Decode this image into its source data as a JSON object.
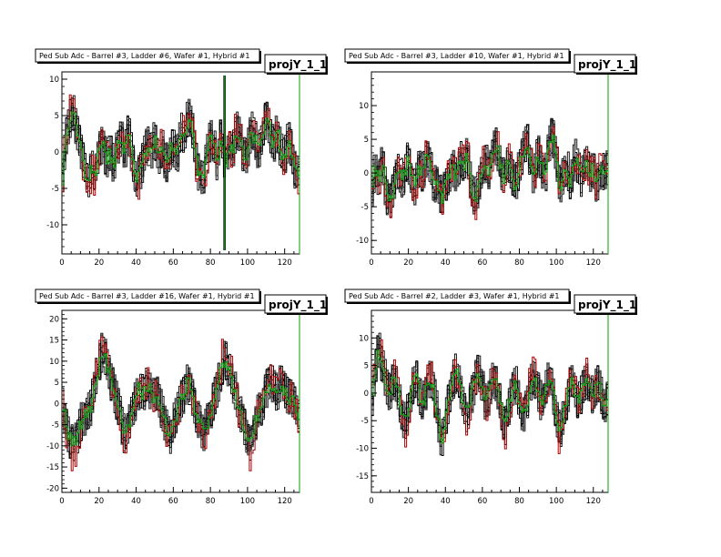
{
  "chart_data": [
    {
      "type": "line",
      "title": "Ped Sub Adc - Barrel #3, Ladder #6, Wafer #1, Hybrid #1",
      "stat_label": "projY_1_1",
      "xlim": [
        0,
        128
      ],
      "ylim": [
        -14,
        11
      ],
      "x_ticks": [
        0,
        20,
        40,
        60,
        80,
        100,
        120
      ],
      "y_ticks": [
        -10,
        -5,
        0,
        5,
        10
      ],
      "profile": [
        [
          0,
          -6
        ],
        [
          2,
          2
        ],
        [
          4,
          4
        ],
        [
          6,
          6
        ],
        [
          8,
          3
        ],
        [
          10,
          1
        ],
        [
          12,
          -2
        ],
        [
          14,
          -5
        ],
        [
          16,
          -2
        ],
        [
          18,
          -3
        ],
        [
          20,
          0
        ],
        [
          22,
          1
        ],
        [
          24,
          -1
        ],
        [
          26,
          0
        ],
        [
          28,
          -2
        ],
        [
          30,
          1
        ],
        [
          32,
          2
        ],
        [
          34,
          0
        ],
        [
          36,
          3
        ],
        [
          38,
          -1
        ],
        [
          40,
          -4
        ],
        [
          42,
          -3
        ],
        [
          44,
          -1
        ],
        [
          46,
          1
        ],
        [
          48,
          0
        ],
        [
          50,
          2
        ],
        [
          52,
          -1
        ],
        [
          54,
          1
        ],
        [
          56,
          -2
        ],
        [
          58,
          0
        ],
        [
          60,
          1
        ],
        [
          62,
          -1
        ],
        [
          64,
          3
        ],
        [
          66,
          2
        ],
        [
          68,
          5
        ],
        [
          70,
          4
        ],
        [
          72,
          -1
        ],
        [
          74,
          -3
        ],
        [
          76,
          -4
        ],
        [
          78,
          -1
        ],
        [
          80,
          2
        ],
        [
          82,
          1
        ],
        [
          84,
          -2
        ],
        [
          86,
          3
        ],
        [
          88,
          -2
        ],
        [
          90,
          1
        ],
        [
          92,
          0
        ],
        [
          94,
          3
        ],
        [
          96,
          2
        ],
        [
          98,
          -1
        ],
        [
          100,
          0
        ],
        [
          102,
          3
        ],
        [
          104,
          2
        ],
        [
          106,
          0
        ],
        [
          108,
          2
        ],
        [
          110,
          5
        ],
        [
          112,
          3
        ],
        [
          114,
          1
        ],
        [
          116,
          3
        ],
        [
          118,
          0
        ],
        [
          120,
          -1
        ],
        [
          122,
          2
        ],
        [
          124,
          0
        ],
        [
          126,
          -3
        ],
        [
          128,
          -3
        ]
      ],
      "spike": {
        "x": 87,
        "ymin": -13.5,
        "ymax": 10.5
      },
      "seed": 11
    },
    {
      "type": "line",
      "title": "Ped Sub Adc - Barrel #3, Ladder #10, Wafer #1, Hybrid #1",
      "stat_label": "projY_1_1",
      "xlim": [
        0,
        128
      ],
      "ylim": [
        -12,
        15
      ],
      "x_ticks": [
        0,
        20,
        40,
        60,
        80,
        100,
        120
      ],
      "y_ticks": [
        -10,
        -5,
        0,
        5,
        10
      ],
      "profile": [
        [
          0,
          -3
        ],
        [
          2,
          1
        ],
        [
          4,
          -1
        ],
        [
          6,
          2
        ],
        [
          8,
          -3
        ],
        [
          10,
          -5
        ],
        [
          12,
          -2
        ],
        [
          14,
          1
        ],
        [
          16,
          -1
        ],
        [
          18,
          0
        ],
        [
          20,
          2
        ],
        [
          22,
          -1
        ],
        [
          24,
          -2
        ],
        [
          26,
          1
        ],
        [
          28,
          0
        ],
        [
          30,
          3
        ],
        [
          32,
          1
        ],
        [
          34,
          -2
        ],
        [
          36,
          -1
        ],
        [
          38,
          -4
        ],
        [
          40,
          -2
        ],
        [
          42,
          0
        ],
        [
          44,
          1
        ],
        [
          46,
          -1
        ],
        [
          48,
          2
        ],
        [
          50,
          1
        ],
        [
          52,
          3
        ],
        [
          54,
          -2
        ],
        [
          56,
          -4
        ],
        [
          58,
          -2
        ],
        [
          60,
          1
        ],
        [
          62,
          2
        ],
        [
          64,
          0
        ],
        [
          66,
          3
        ],
        [
          68,
          4
        ],
        [
          70,
          1
        ],
        [
          72,
          -1
        ],
        [
          74,
          2
        ],
        [
          76,
          0
        ],
        [
          78,
          -2
        ],
        [
          80,
          1
        ],
        [
          82,
          3
        ],
        [
          84,
          5
        ],
        [
          86,
          2
        ],
        [
          88,
          -1
        ],
        [
          90,
          3
        ],
        [
          92,
          1
        ],
        [
          94,
          -1
        ],
        [
          96,
          4
        ],
        [
          98,
          6
        ],
        [
          100,
          2
        ],
        [
          102,
          -2
        ],
        [
          104,
          0
        ],
        [
          106,
          1
        ],
        [
          108,
          -2
        ],
        [
          110,
          3
        ],
        [
          112,
          1
        ],
        [
          114,
          -1
        ],
        [
          116,
          2
        ],
        [
          118,
          0
        ],
        [
          120,
          1
        ],
        [
          122,
          -2
        ],
        [
          124,
          1
        ],
        [
          126,
          0
        ],
        [
          128,
          1
        ]
      ],
      "spike": null,
      "seed": 23
    },
    {
      "type": "line",
      "title": "Ped Sub Adc - Barrel #3, Ladder #16, Wafer #1, Hybrid #1",
      "stat_label": "projY_1_1",
      "xlim": [
        0,
        128
      ],
      "ylim": [
        -21,
        22
      ],
      "x_ticks": [
        0,
        20,
        40,
        60,
        80,
        100,
        120
      ],
      "y_ticks": [
        -20,
        -15,
        -10,
        -5,
        0,
        5,
        10,
        15,
        20
      ],
      "profile": [
        [
          0,
          0
        ],
        [
          2,
          -4
        ],
        [
          4,
          -8
        ],
        [
          6,
          -10
        ],
        [
          8,
          -8
        ],
        [
          10,
          -5
        ],
        [
          12,
          -3
        ],
        [
          14,
          -2
        ],
        [
          16,
          0
        ],
        [
          18,
          5
        ],
        [
          20,
          9
        ],
        [
          22,
          13
        ],
        [
          24,
          10
        ],
        [
          26,
          6
        ],
        [
          28,
          3
        ],
        [
          30,
          0
        ],
        [
          32,
          -4
        ],
        [
          34,
          -8
        ],
        [
          36,
          -5
        ],
        [
          38,
          -2
        ],
        [
          40,
          1
        ],
        [
          42,
          4
        ],
        [
          44,
          2
        ],
        [
          46,
          5
        ],
        [
          48,
          3
        ],
        [
          50,
          1
        ],
        [
          52,
          2
        ],
        [
          54,
          -2
        ],
        [
          56,
          -5
        ],
        [
          58,
          -8
        ],
        [
          60,
          -5
        ],
        [
          62,
          -2
        ],
        [
          64,
          0
        ],
        [
          66,
          3
        ],
        [
          68,
          5
        ],
        [
          70,
          2
        ],
        [
          72,
          -2
        ],
        [
          74,
          -4
        ],
        [
          76,
          -7
        ],
        [
          78,
          -5
        ],
        [
          80,
          -2
        ],
        [
          82,
          1
        ],
        [
          84,
          4
        ],
        [
          86,
          8
        ],
        [
          88,
          11
        ],
        [
          90,
          8
        ],
        [
          92,
          5
        ],
        [
          94,
          2
        ],
        [
          96,
          -2
        ],
        [
          98,
          -5
        ],
        [
          100,
          -8
        ],
        [
          102,
          -10
        ],
        [
          104,
          -5
        ],
        [
          106,
          -2
        ],
        [
          108,
          0
        ],
        [
          110,
          3
        ],
        [
          112,
          5
        ],
        [
          114,
          4
        ],
        [
          116,
          2
        ],
        [
          118,
          5
        ],
        [
          120,
          3
        ],
        [
          122,
          1
        ],
        [
          124,
          2
        ],
        [
          126,
          0
        ],
        [
          128,
          -3
        ]
      ],
      "spike": null,
      "seed": 37
    },
    {
      "type": "line",
      "title": "Ped Sub Adc - Barrel #2, Ladder #3, Wafer #1, Hybrid #1",
      "stat_label": "projY_1_1",
      "xlim": [
        0,
        128
      ],
      "ylim": [
        -18,
        15
      ],
      "x_ticks": [
        0,
        20,
        40,
        60,
        80,
        100,
        120
      ],
      "y_ticks": [
        -15,
        -10,
        -5,
        0,
        5,
        10
      ],
      "profile": [
        [
          0,
          -2
        ],
        [
          2,
          4
        ],
        [
          4,
          8
        ],
        [
          6,
          5
        ],
        [
          8,
          2
        ],
        [
          10,
          0
        ],
        [
          12,
          3
        ],
        [
          14,
          1
        ],
        [
          16,
          -3
        ],
        [
          18,
          -6
        ],
        [
          20,
          -3
        ],
        [
          22,
          1
        ],
        [
          24,
          3
        ],
        [
          26,
          0
        ],
        [
          28,
          -2
        ],
        [
          30,
          1
        ],
        [
          32,
          3
        ],
        [
          34,
          0
        ],
        [
          36,
          -4
        ],
        [
          38,
          -9
        ],
        [
          40,
          -5
        ],
        [
          42,
          -1
        ],
        [
          44,
          2
        ],
        [
          46,
          4
        ],
        [
          48,
          1
        ],
        [
          50,
          -2
        ],
        [
          52,
          -4
        ],
        [
          54,
          -1
        ],
        [
          56,
          2
        ],
        [
          58,
          4
        ],
        [
          60,
          1
        ],
        [
          62,
          -2
        ],
        [
          64,
          0
        ],
        [
          66,
          3
        ],
        [
          68,
          1
        ],
        [
          70,
          -2
        ],
        [
          72,
          -7
        ],
        [
          74,
          -3
        ],
        [
          76,
          0
        ],
        [
          78,
          2
        ],
        [
          80,
          -1
        ],
        [
          82,
          -4
        ],
        [
          84,
          -2
        ],
        [
          86,
          2
        ],
        [
          88,
          3
        ],
        [
          90,
          1
        ],
        [
          92,
          -2
        ],
        [
          94,
          0
        ],
        [
          96,
          3
        ],
        [
          98,
          1
        ],
        [
          100,
          -4
        ],
        [
          102,
          -7
        ],
        [
          104,
          -4
        ],
        [
          106,
          -1
        ],
        [
          108,
          2
        ],
        [
          110,
          1
        ],
        [
          112,
          -2
        ],
        [
          114,
          0
        ],
        [
          116,
          3
        ],
        [
          118,
          1
        ],
        [
          120,
          -1
        ],
        [
          122,
          2
        ],
        [
          124,
          0
        ],
        [
          126,
          -3
        ],
        [
          128,
          -1
        ]
      ],
      "spike": null,
      "seed": 53
    }
  ],
  "series_colors": {
    "gray": "#555555",
    "black": "#000000",
    "red": "#b00000",
    "green": "#00a000"
  }
}
